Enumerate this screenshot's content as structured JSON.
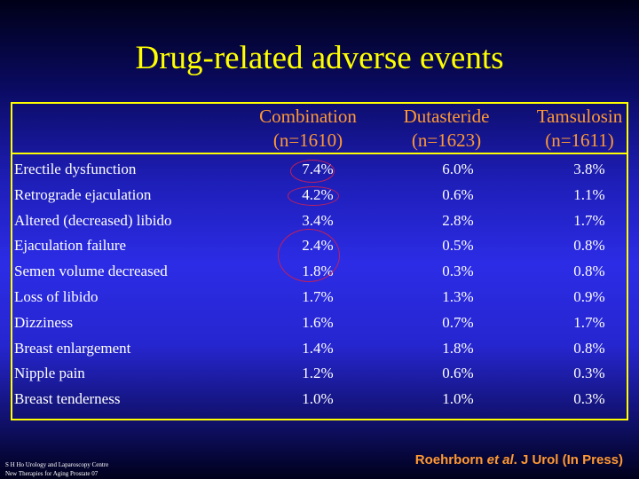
{
  "title": "Drug-related adverse events",
  "columns": [
    {
      "name": "Combination",
      "n": "(n=1610)"
    },
    {
      "name": "Dutasteride",
      "n": "(n=1623)"
    },
    {
      "name": "Tamsulosin",
      "n": "(n=1611)"
    }
  ],
  "rows": [
    {
      "label": "Erectile dysfunction",
      "values": [
        "7.4%",
        "6.0%",
        "3.8%"
      ]
    },
    {
      "label": "Retrograde ejaculation",
      "values": [
        "4.2%",
        "0.6%",
        "1.1%"
      ]
    },
    {
      "label": "Altered (decreased) libido",
      "values": [
        "3.4%",
        "2.8%",
        "1.7%"
      ]
    },
    {
      "label": "Ejaculation failure",
      "values": [
        "2.4%",
        "0.5%",
        "0.8%"
      ]
    },
    {
      "label": "Semen volume decreased",
      "values": [
        "1.8%",
        "0.3%",
        "0.8%"
      ]
    },
    {
      "label": "Loss of libido",
      "values": [
        "1.7%",
        "1.3%",
        "0.9%"
      ]
    },
    {
      "label": "Dizziness",
      "values": [
        "1.6%",
        "0.7%",
        "1.7%"
      ]
    },
    {
      "label": "Breast enlargement",
      "values": [
        "1.4%",
        "1.8%",
        "0.8%"
      ]
    },
    {
      "label": "Nipple pain",
      "values": [
        "1.2%",
        "0.6%",
        "0.3%"
      ]
    },
    {
      "label": "Breast tenderness",
      "values": [
        "1.0%",
        "1.0%",
        "0.3%"
      ]
    }
  ],
  "footer": {
    "line1": "S H Ho Urology and Laparoscopy Centre",
    "line2": "New Therapies for Aging Prostate 07"
  },
  "citation": {
    "author": "Roehrborn ",
    "etal": "et al",
    "rest": ". J Urol (In Press)"
  }
}
